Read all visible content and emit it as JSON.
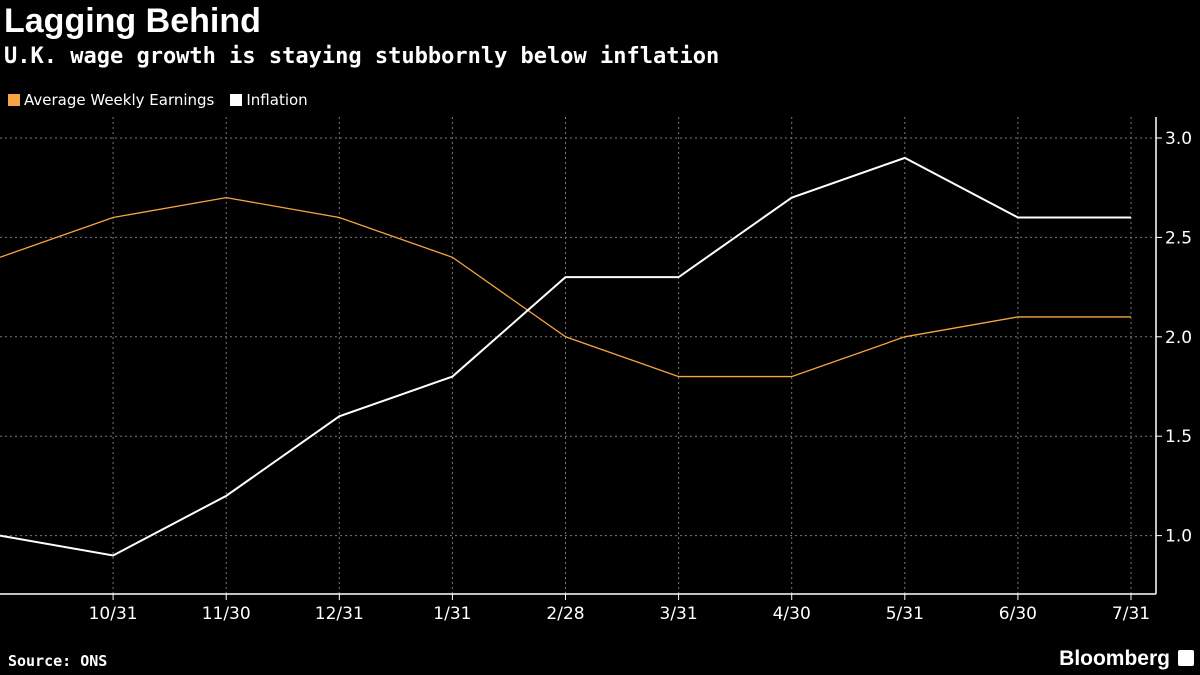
{
  "chart_data": {
    "type": "line",
    "title": "Lagging Behind",
    "subtitle": "U.K. wage growth is staying stubbornly below inflation",
    "categories": [
      "",
      "10/31",
      "11/30",
      "12/31",
      "1/31",
      "2/28",
      "3/31",
      "4/30",
      "5/31",
      "6/30",
      "7/31"
    ],
    "series": [
      {
        "name": "Average Weekly Earnings",
        "color": "#f7a540",
        "values": [
          2.4,
          2.6,
          2.7,
          2.6,
          2.4,
          2.0,
          1.8,
          1.8,
          2.0,
          2.1,
          2.1
        ]
      },
      {
        "name": "Inflation",
        "color": "#ffffff",
        "values": [
          1.0,
          0.9,
          1.2,
          1.6,
          1.8,
          2.3,
          2.3,
          2.7,
          2.9,
          2.6,
          2.6
        ]
      }
    ],
    "yticks": [
      "1.0",
      "1.5",
      "2.0",
      "2.5",
      "3.0"
    ],
    "ylim": [
      0.7,
      3.1
    ],
    "grid": true,
    "legend": "top-left",
    "source": "Source: ONS",
    "brand": "Bloomberg"
  }
}
